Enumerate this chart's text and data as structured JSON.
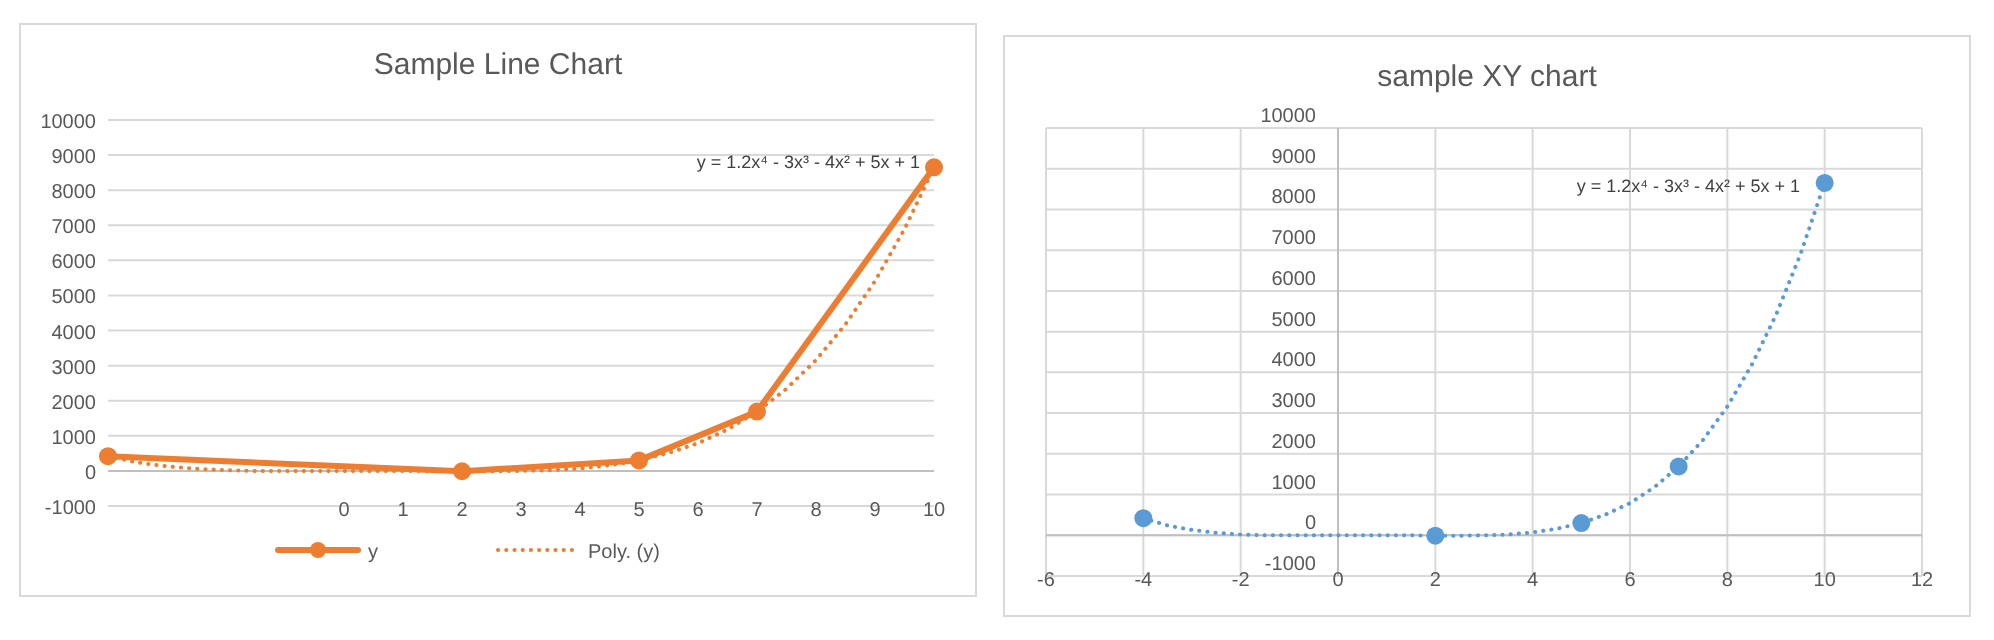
{
  "chart_data": [
    {
      "type": "line",
      "title": "Sample Line Chart",
      "x": [
        -4,
        2,
        5,
        7,
        10
      ],
      "xlim": [
        -4,
        10
      ],
      "xticks": [
        0,
        1,
        2,
        3,
        4,
        5,
        6,
        7,
        8,
        9,
        10
      ],
      "ylim": [
        -1000,
        10000
      ],
      "yticks": [
        -1000,
        0,
        1000,
        2000,
        3000,
        4000,
        5000,
        6000,
        7000,
        8000,
        9000,
        10000
      ],
      "grid": "y",
      "legend": "bottom",
      "annotations": [
        "y = 1.2x⁴ - 3x³ - 4x² + 5x + 1"
      ],
      "series": [
        {
          "name": "y",
          "color": "#ed7d31",
          "marker": "circle",
          "line_style": "solid",
          "values": [
            420,
            -10,
            300,
            1690,
            8650
          ]
        },
        {
          "name": "Poly. (y)",
          "color": "#ed7d31",
          "marker": "none",
          "line_style": "dotted",
          "x": [
            -4,
            -3.5,
            -3,
            -2.5,
            -2,
            -1.5,
            -1,
            -0.5,
            0,
            0.5,
            1,
            1.5,
            2,
            2.5,
            3,
            3.5,
            4,
            4.5,
            5,
            5.5,
            6,
            6.5,
            7,
            7.5,
            8,
            8.5,
            9,
            9.5,
            10
          ],
          "values": [
            420,
            240,
            130,
            60,
            20,
            0,
            0,
            0,
            0,
            0,
            0,
            0,
            -10,
            -10,
            0,
            20,
            70,
            160,
            300,
            510,
            790,
            1180,
            1690,
            2340,
            3160,
            4180,
            5410,
            6890,
            8650
          ]
        }
      ]
    },
    {
      "type": "scatter",
      "title": "sample XY chart",
      "x": [
        -4,
        2,
        5,
        7,
        10
      ],
      "xlim": [
        -6,
        12
      ],
      "xticks": [
        -6,
        -4,
        -2,
        0,
        2,
        4,
        6,
        8,
        10,
        12
      ],
      "ylim": [
        -1000,
        10000
      ],
      "yticks": [
        -1000,
        0,
        1000,
        2000,
        3000,
        4000,
        5000,
        6000,
        7000,
        8000,
        9000,
        10000
      ],
      "grid": true,
      "annotations": [
        "y = 1.2x⁴ - 3x³ - 4x² + 5x + 1"
      ],
      "series": [
        {
          "color": "#5b9bd5",
          "marker": "circle",
          "values": [
            420,
            -10,
            300,
            1690,
            8650
          ]
        },
        {
          "type": "line",
          "color": "#5b9bd5",
          "marker": "none",
          "line_style": "dotted",
          "x": [
            -4,
            -3.5,
            -3,
            -2.5,
            -2,
            -1.5,
            -1,
            -0.5,
            0,
            0.5,
            1,
            1.5,
            2,
            2.5,
            3,
            3.5,
            4,
            4.5,
            5,
            5.5,
            6,
            6.5,
            7,
            7.5,
            8,
            8.5,
            9,
            9.5,
            10
          ],
          "values": [
            420,
            240,
            130,
            60,
            20,
            0,
            0,
            0,
            0,
            0,
            0,
            0,
            -10,
            -10,
            0,
            20,
            70,
            160,
            300,
            510,
            790,
            1180,
            1690,
            2340,
            3160,
            4180,
            5410,
            6890,
            8650
          ]
        }
      ]
    }
  ]
}
